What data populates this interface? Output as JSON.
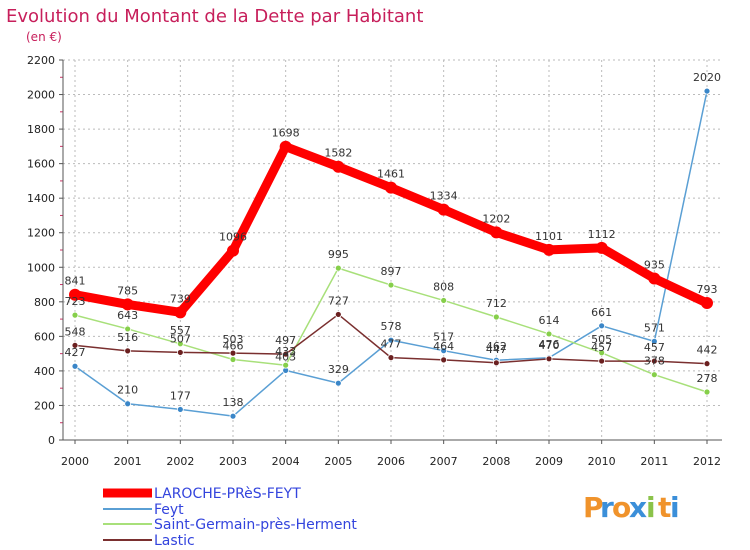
{
  "title": "Evolution du Montant de la Dette par Habitant",
  "subtitle": "(en €)",
  "logo": {
    "text": "Proxiti",
    "letters": [
      "P",
      "r",
      "o",
      "x",
      "i",
      "t",
      "i"
    ],
    "colors": [
      "#f0932b",
      "#3b8fd9",
      "#f0932b",
      "#3b8fd9",
      "#8bc34a",
      "#f0932b",
      "#3b8fd9"
    ]
  },
  "colors": {
    "title": "#c71f5b",
    "grid": "#bbbbbb",
    "axis": "#555555",
    "legend_text": "#3344dd"
  },
  "chart_data": {
    "type": "line",
    "title": "Evolution du Montant de la Dette par Habitant",
    "subtitle": "(en €)",
    "xlabel": "",
    "ylabel": "",
    "ylim": [
      0,
      2200
    ],
    "yticks": [
      0,
      200,
      400,
      600,
      800,
      1000,
      1200,
      1400,
      1600,
      1800,
      2000,
      2200
    ],
    "grid": "horizontal dashed",
    "legend_position": "bottom-left",
    "x": [
      "2000",
      "2001",
      "2002",
      "2003",
      "2004",
      "2005",
      "2006",
      "2007",
      "2008",
      "2009",
      "2010",
      "2011",
      "2012"
    ],
    "series": [
      {
        "name": "Feyt",
        "color": "#5a9fd4",
        "marker": "#3a86c8",
        "values": [
          427,
          210,
          177,
          138,
          403,
          329,
          578,
          517,
          462,
          476,
          661,
          571,
          2020
        ],
        "labels": [
          "427",
          "210",
          "177",
          "138",
          "403",
          "329",
          "578",
          "517",
          "462",
          "476",
          "661",
          "571",
          "2020"
        ]
      },
      {
        "name": "Saint-Germain-près-Herment",
        "color": "#a8e07a",
        "marker": "#86cf4a",
        "values": [
          723,
          643,
          557,
          466,
          433,
          995,
          897,
          808,
          712,
          614,
          505,
          378,
          278
        ],
        "labels": [
          "723",
          "643",
          "557",
          "466",
          "433",
          "995",
          "897",
          "808",
          "712",
          "614",
          "505",
          "378",
          "278"
        ]
      },
      {
        "name": "Lastic",
        "color": "#7a2f2f",
        "marker": "#6b2020",
        "values": [
          548,
          516,
          507,
          503,
          497,
          727,
          477,
          464,
          447,
          470,
          457,
          457,
          442
        ],
        "labels": [
          "548",
          "516",
          "507",
          "503",
          "497",
          "727",
          "477",
          "464",
          "447",
          "470",
          "457",
          "457",
          "442"
        ]
      },
      {
        "name": "LAROCHE-PRèS-FEYT",
        "color": "#ff0000",
        "marker": "#ff0000",
        "thick": true,
        "values": [
          841,
          785,
          739,
          1096,
          1698,
          1582,
          1461,
          1334,
          1202,
          1101,
          1112,
          935,
          793
        ],
        "labels": [
          "841",
          "785",
          "739",
          "1096",
          "1698",
          "1582",
          "1461",
          "1334",
          "1202",
          "1101",
          "1112",
          "935",
          "793"
        ]
      }
    ],
    "legend": [
      "LAROCHE-PRèS-FEYT",
      "Feyt",
      "Saint-Germain-près-Herment",
      "Lastic"
    ]
  }
}
